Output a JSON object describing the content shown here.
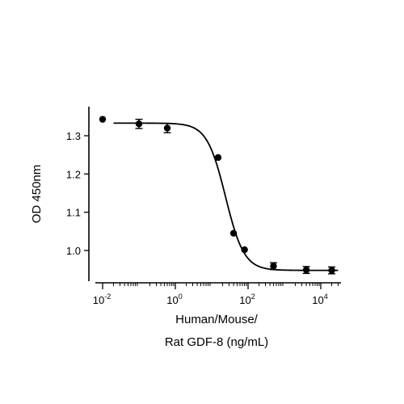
{
  "chart_data": {
    "type": "scatter",
    "title": "",
    "xlabel_lines": [
      "Human/Mouse/",
      "Rat GDF-8 (ng/mL)"
    ],
    "ylabel": "OD 450nm",
    "x_scale": "log10",
    "xlim": [
      0.01,
      30000
    ],
    "ylim": [
      0.93,
      1.36
    ],
    "x_ticks": [
      {
        "value": 0.01,
        "base": "10",
        "exp": "-2"
      },
      {
        "value": 1,
        "base": "10",
        "exp": "0"
      },
      {
        "value": 100,
        "base": "10",
        "exp": "2"
      },
      {
        "value": 10000,
        "base": "10",
        "exp": "4"
      }
    ],
    "y_ticks": [
      {
        "value": 1.0,
        "label": "1.0"
      },
      {
        "value": 1.1,
        "label": "1.1"
      },
      {
        "value": 1.2,
        "label": "1.2"
      },
      {
        "value": 1.3,
        "label": "1.3"
      }
    ],
    "grid": false,
    "legend": "none",
    "points": [
      {
        "x": 0.01,
        "y": 1.343,
        "err": 0
      },
      {
        "x": 0.1,
        "y": 1.331,
        "err": 0.012
      },
      {
        "x": 0.6,
        "y": 1.32,
        "err": 0.012
      },
      {
        "x": 15,
        "y": 1.243,
        "err": 0
      },
      {
        "x": 40,
        "y": 1.045,
        "err": 0
      },
      {
        "x": 80,
        "y": 1.002,
        "err": 0
      },
      {
        "x": 500,
        "y": 0.959,
        "err": 0.009
      },
      {
        "x": 4000,
        "y": 0.949,
        "err": 0.009
      },
      {
        "x": 20000,
        "y": 0.948,
        "err": 0.009
      }
    ],
    "fit": {
      "model": "4PL",
      "top": 1.333,
      "bottom": 0.948,
      "ec50": 24,
      "hill": 1.7
    }
  }
}
